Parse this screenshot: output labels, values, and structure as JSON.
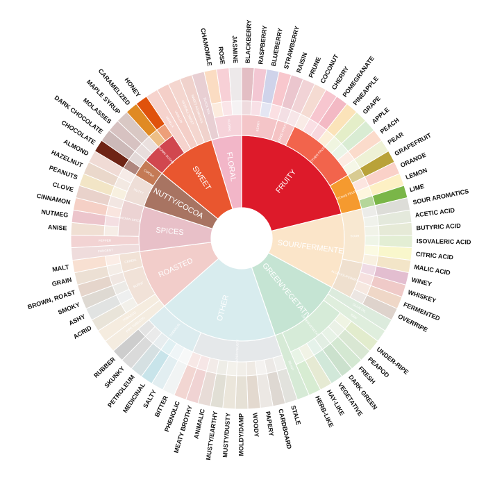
{
  "chart_data": {
    "type": "sunburst",
    "title": "",
    "categories": [
      {
        "name": "FRUITY",
        "color": "#dd1a2a",
        "children": [
          {
            "name": "BERRY",
            "color": "#f4c5c8",
            "children": [
              {
                "name": "BLACKBERRY",
                "color": "#e3bec4"
              },
              {
                "name": "RASPBERRY",
                "color": "#f3c7d3"
              },
              {
                "name": "BLUEBERRY",
                "color": "#cfd3ea"
              },
              {
                "name": "STRAWBERRY",
                "color": "#f8c7cd"
              }
            ]
          },
          {
            "name": "DRIED FRUIT",
            "color": "#f5c3c4",
            "children": [
              {
                "name": "RAISIN",
                "color": "#ebc6ce"
              },
              {
                "name": "PRUNE",
                "color": "#f1d3d6"
              }
            ]
          },
          {
            "name": "OTHER FRUIT",
            "color": "#f2644c",
            "children": [
              {
                "name": "COCONUT",
                "color": "#f5dbd2"
              },
              {
                "name": "CHERRY",
                "color": "#f7c6cf"
              },
              {
                "name": "POMEGRANATE",
                "color": "#f3b9c4"
              },
              {
                "name": "PINEAPPLE",
                "color": "#fbe3b9"
              },
              {
                "name": "GRAPE",
                "color": "#e4eec8"
              },
              {
                "name": "APPLE",
                "color": "#d9ecd3"
              },
              {
                "name": "PEACH",
                "color": "#fbdbcb"
              },
              {
                "name": "PEAR",
                "color": "#eef1d5"
              }
            ]
          },
          {
            "name": "CITRUS FRUIT",
            "color": "#f59a2f",
            "children": [
              {
                "name": "GRAPEFRUIT",
                "color": "#b9a239"
              },
              {
                "name": "ORANGE",
                "color": "#fad1c8"
              },
              {
                "name": "LEMON",
                "color": "#fdf0c4"
              },
              {
                "name": "LIME",
                "color": "#7ab648"
              }
            ]
          }
        ]
      },
      {
        "name": "SOUR/FERMENTED",
        "color": "#fbe5c9",
        "children": [
          {
            "name": "SOUR",
            "color": "#f8e8d1",
            "children": [
              {
                "name": "SOUR AROMATICS",
                "color": "#ddddd8"
              },
              {
                "name": "ACETIC ACID",
                "color": "#e4e9dc"
              },
              {
                "name": "BUTYRIC ACID",
                "color": "#e6ead7"
              },
              {
                "name": "ISOVALERIC ACID",
                "color": "#e3eed4"
              },
              {
                "name": "CITRIC ACID",
                "color": "#f9f7cc"
              },
              {
                "name": "MALIC ACID",
                "color": "#f3e5c8"
              }
            ]
          },
          {
            "name": "ALCOHOL/FERMENTED",
            "color": "#efe0cf",
            "children": [
              {
                "name": "WINEY",
                "color": "#e3bed0"
              },
              {
                "name": "WHISKEY",
                "color": "#efcac8"
              },
              {
                "name": "FERMENTED",
                "color": "#efd7c7"
              },
              {
                "name": "OVERRIPE",
                "color": "#ded3cc"
              }
            ]
          }
        ]
      },
      {
        "name": "GREEN/VEGETATIVE",
        "color": "#c5e4d3",
        "children": [
          {
            "name": "OLIVE OIL",
            "color": "#dcebdd",
            "children": []
          },
          {
            "name": "RAW",
            "color": "#dfeedd",
            "children": []
          },
          {
            "name": "GREEN/VEGETATIVE",
            "color": "#d6ebd8",
            "children": [
              {
                "name": "UNDER-RIPE",
                "color": "#e2eccd"
              },
              {
                "name": "PEAPOD",
                "color": "#d9e7d3"
              },
              {
                "name": "FRESH",
                "color": "#d4e8d2"
              },
              {
                "name": "DARK GREEN",
                "color": "#cbe1cd"
              },
              {
                "name": "VEGETATIVE",
                "color": "#d1e8d9"
              },
              {
                "name": "HAY-LIKE",
                "color": "#e6ead3"
              },
              {
                "name": "HERB-LIKE",
                "color": "#d7ecd2"
              }
            ]
          },
          {
            "name": "BEANY",
            "color": "#d6ead6",
            "children": []
          }
        ]
      },
      {
        "name": "OTHER",
        "color": "#d8ecee",
        "children": [
          {
            "name": "PAPERY/MUSTY",
            "color": "#e5e8ea",
            "children": [
              {
                "name": "STALE",
                "color": "#e2e2dd"
              },
              {
                "name": "CARDBOARD",
                "color": "#ded8d2"
              },
              {
                "name": "PAPERY",
                "color": "#ece8e4"
              },
              {
                "name": "WOODY",
                "color": "#e3d9cf"
              },
              {
                "name": "MOLDY/DAMP",
                "color": "#e6e1d6"
              },
              {
                "name": "MUSTY/DUSTY",
                "color": "#ebe6db"
              },
              {
                "name": "MUSTY/EARTHY",
                "color": "#e1dfd5"
              },
              {
                "name": "ANIMALIC",
                "color": "#e8dcd7"
              },
              {
                "name": "MEATY BROTHY",
                "color": "#f0d3d3"
              },
              {
                "name": "PHENOLIC",
                "color": "#f2d6d2"
              }
            ]
          },
          {
            "name": "CHEMICAL",
            "color": "#dcecef",
            "children": [
              {
                "name": "BITTER",
                "color": "#f1f4f4"
              },
              {
                "name": "SALTY",
                "color": "#e2eef1"
              },
              {
                "name": "MEDICINAL",
                "color": "#c8e4ea"
              },
              {
                "name": "PETROLEUM",
                "color": "#d5e0e2"
              },
              {
                "name": "SKUNKY",
                "color": "#dadada"
              },
              {
                "name": "RUBBER",
                "color": "#cdcdcd"
              }
            ]
          }
        ]
      },
      {
        "name": "ROASTED",
        "color": "#f2cdca",
        "children": [
          {
            "name": "PIPE TOBACCO",
            "color": "#f4ece0",
            "children": []
          },
          {
            "name": "TOBACCO",
            "color": "#f5ecdf",
            "children": []
          },
          {
            "name": "BURNT",
            "color": "#f1e2d8",
            "children": [
              {
                "name": "ACRID",
                "color": "#e9e4d9"
              },
              {
                "name": "ASHY",
                "color": "#e1e3e2"
              },
              {
                "name": "SMOKY",
                "color": "#ded9d2"
              },
              {
                "name": "BROWN, ROAST",
                "color": "#e5d5cb"
              }
            ]
          },
          {
            "name": "CEREAL",
            "color": "#f1e2d6",
            "children": [
              {
                "name": "GRAIN",
                "color": "#ece0d4"
              },
              {
                "name": "MALT",
                "color": "#f8e0d2"
              }
            ]
          }
        ]
      },
      {
        "name": "SPICES",
        "color": "#e8c0c8",
        "children": [
          {
            "name": "PUNGENT",
            "color": "#efdcdc",
            "children": []
          },
          {
            "name": "PEPPER",
            "color": "#f2d3d3",
            "children": []
          },
          {
            "name": "BROWN SPICE",
            "color": "#ecd3d3",
            "children": [
              {
                "name": "ANISE",
                "color": "#f0dfd3"
              },
              {
                "name": "NUTMEG",
                "color": "#ecc5cc"
              },
              {
                "name": "CINNAMON",
                "color": "#f5d0c6"
              },
              {
                "name": "CLOVE",
                "color": "#e9d2cb"
              }
            ]
          }
        ]
      },
      {
        "name": "NUTTY/COCOA",
        "color": "#a87462",
        "children": [
          {
            "name": "NUTTY",
            "color": "#eeded7",
            "children": [
              {
                "name": "PEANUTS",
                "color": "#f2e5c6"
              },
              {
                "name": "HAZELNUT",
                "color": "#ead8cb"
              },
              {
                "name": "ALMOND",
                "color": "#f0dbd5"
              }
            ]
          },
          {
            "name": "COCOA",
            "color": "#c47a55",
            "children": [
              {
                "name": "CHOCOLATE",
                "color": "#6e2415"
              },
              {
                "name": "DARK CHOCOLATE",
                "color": "#ccb9b8"
              }
            ]
          }
        ]
      },
      {
        "name": "SWEET",
        "color": "#e9562f",
        "children": [
          {
            "name": "BROWN SUGAR",
            "color": "#d1474f",
            "children": [
              {
                "name": "MOLASSES",
                "color": "#d7c2c1"
              },
              {
                "name": "MAPLE SYRUP",
                "color": "#d9c8c4"
              },
              {
                "name": "CARAMELIZED",
                "color": "#e08a23"
              },
              {
                "name": "HONEY",
                "color": "#e0520c"
              }
            ]
          },
          {
            "name": "VANILLA",
            "color": "#f6d3cd",
            "children": []
          },
          {
            "name": "VANILLIN",
            "color": "#f4cfc8",
            "children": []
          },
          {
            "name": "OVERALL SWEET",
            "color": "#f4d6cf",
            "children": []
          },
          {
            "name": "SWEET AROMATICS",
            "color": "#f0d2cc",
            "children": []
          }
        ]
      },
      {
        "name": "FLORAL",
        "color": "#f2b6c8",
        "children": [
          {
            "name": "BLACK TEA",
            "color": "#e8cfd3",
            "children": []
          },
          {
            "name": "FLORAL",
            "color": "#f6d3da",
            "children": [
              {
                "name": "CHAMOMILE",
                "color": "#fbdcc2"
              },
              {
                "name": "ROSE",
                "color": "#f7d0d6"
              },
              {
                "name": "JASMINE",
                "color": "#ede9ea"
              }
            ]
          }
        ]
      }
    ]
  }
}
